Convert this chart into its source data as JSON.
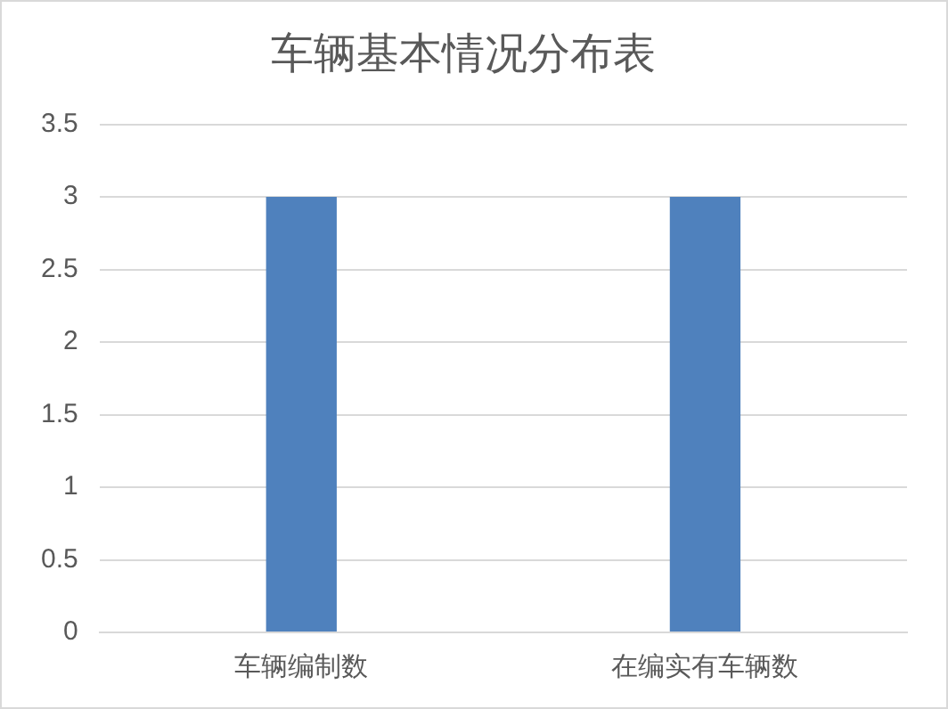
{
  "chart_data": {
    "type": "bar",
    "title": "车辆基本情况分布表",
    "categories": [
      "车辆编制数",
      "在编实有车辆数"
    ],
    "values": [
      3,
      3
    ],
    "color": "#4f81bd",
    "ylim": [
      0,
      3.5
    ],
    "yticks": [
      0,
      0.5,
      1,
      1.5,
      2,
      2.5,
      3,
      3.5
    ],
    "grid": "y",
    "legend": false
  }
}
